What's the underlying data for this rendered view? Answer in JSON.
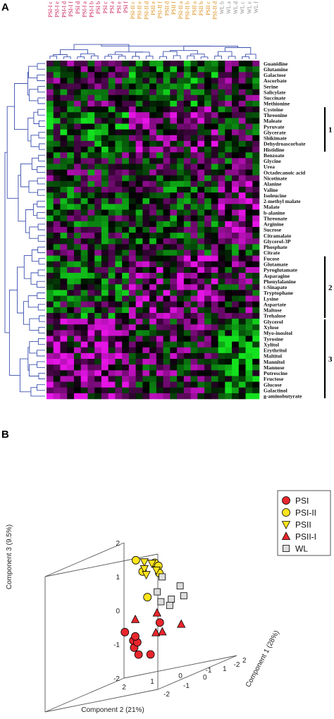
{
  "panels": {
    "a": "A",
    "b": "B"
  },
  "chart_data": [
    {
      "type": "heatmap",
      "title": "",
      "columns": [
        {
          "label": "PSI-I c",
          "group": "PSI-I"
        },
        {
          "label": "PSI-I e",
          "group": "PSI-I"
        },
        {
          "label": "PSI-I d",
          "group": "PSI-I"
        },
        {
          "label": "PSI-I f",
          "group": "PSI-I"
        },
        {
          "label": "PSI d",
          "group": "PSI-I"
        },
        {
          "label": "PSI-I a",
          "group": "PSI-I"
        },
        {
          "label": "PSI-I b",
          "group": "PSI-I"
        },
        {
          "label": "PSI b",
          "group": "PSI-I"
        },
        {
          "label": "PSI c",
          "group": "PSI-I"
        },
        {
          "label": "PSI a",
          "group": "PSI-I"
        },
        {
          "label": "PSI e",
          "group": "PSI-I"
        },
        {
          "label": "PSI f",
          "group": "PSI-I"
        },
        {
          "label": "PSI-II c",
          "group": "PSI-II"
        },
        {
          "label": "PSI-II e",
          "group": "PSI-II"
        },
        {
          "label": "PSI-II d",
          "group": "PSI-II"
        },
        {
          "label": "PSII e",
          "group": "PSI-II"
        },
        {
          "label": "PSI-II f",
          "group": "PSI-II"
        },
        {
          "label": "PSII d",
          "group": "PSI-II"
        },
        {
          "label": "PSII f",
          "group": "PSI-II"
        },
        {
          "label": "PSI-II a",
          "group": "PSI-II"
        },
        {
          "label": "PSI-II b",
          "group": "PSI-II"
        },
        {
          "label": "PSII a",
          "group": "PSI-II"
        },
        {
          "label": "PSII b",
          "group": "PSI-II"
        },
        {
          "label": "PSII c",
          "group": "PSI-II"
        },
        {
          "label": "PSI-II d",
          "group": "PSI-II"
        },
        {
          "label": "WL b",
          "group": "WL"
        },
        {
          "label": "WL a",
          "group": "WL"
        },
        {
          "label": "WL d",
          "group": "WL"
        },
        {
          "label": "WL c",
          "group": "WL"
        },
        {
          "label": "WL e",
          "group": "WL"
        },
        {
          "label": "WL f",
          "group": "WL"
        }
      ],
      "rows": [
        "Guanidine",
        "Glutamine",
        "Galactose",
        "Ascorbate",
        "Serine",
        "Salicylate",
        "Succinate",
        "Methionine",
        "Cysteine",
        "Threonine",
        "Maleate",
        "Pyruvate",
        "Glycerate",
        "Shikimate",
        "Dehydroascorbate",
        "Histidine",
        "Benzoate",
        "Glycine",
        "Urea",
        "Octadecanoic acid",
        "Nicotinate",
        "Alanine",
        "Valine",
        "Isoleucine",
        "2-methyl malate",
        "Malate",
        "b-alanine",
        "Threonate",
        "Arginine",
        "Sucrose",
        "Citramalate",
        "Glycerol-3P",
        "Phosphate",
        "Citrate",
        "Fucose",
        "Glutamate",
        "Pyroglutamate",
        "Asparagine",
        "Phenylalanine",
        "t-Sinapate",
        "Tryptophane",
        "Lysine",
        "Aspartate",
        "Maltose",
        "Trehalose",
        "Glycerol",
        "Xylose",
        "Myo-inositol",
        "Tyrosine",
        "Xylitol",
        "Erythritol",
        "Maltitol",
        "Mannitol",
        "Mannose",
        "Putrescine",
        "Fructose",
        "Glucose",
        "Galactinol",
        "g-aminobutyrate"
      ],
      "clusters": [
        {
          "label": "1",
          "from_row": "Cysteine",
          "to_row": "Histidine"
        },
        {
          "label": "2",
          "from_row": "Fucose",
          "to_row": "Trehalose"
        },
        {
          "label": "3",
          "from_row": "Glycerol",
          "to_row": "g-aminobutyrate"
        }
      ],
      "colors": {
        "high": "#ff00ff",
        "low": "#00ee00",
        "mid": "#000000"
      }
    },
    {
      "type": "scatter",
      "projection": "3d",
      "axes": {
        "x": {
          "label": "Component 2 (21%)",
          "ticks": [
            "2",
            "1",
            "0",
            "-1",
            "-2"
          ],
          "range": [
            2,
            -2
          ]
        },
        "y": {
          "label": "Component 1 (28%)",
          "ticks": [
            "2",
            "1",
            "0",
            "-1",
            "-2"
          ],
          "range": [
            2,
            -2
          ]
        },
        "z": {
          "label": "Component 3 (9.5%)",
          "ticks": [
            "2",
            "1",
            "0",
            "-1",
            "-2"
          ],
          "range": [
            -2,
            2
          ]
        }
      },
      "legend_position": "right",
      "series": [
        {
          "name": "PSI",
          "marker": "circle",
          "color": "#e8262c",
          "points": [
            [
              1.2,
              0.9,
              -0.5
            ],
            [
              0.9,
              0.9,
              -0.8
            ],
            [
              0.8,
              0.8,
              -1.0
            ],
            [
              0.9,
              1.1,
              -0.9
            ],
            [
              0.75,
              0.95,
              -1.25
            ],
            [
              0.5,
              1.2,
              -1.35
            ],
            [
              0.1,
              1.1,
              -0.45
            ],
            [
              0.9,
              1.0,
              -0.7
            ]
          ]
        },
        {
          "name": "PSI-II",
          "marker": "circle",
          "color": "#ffe41c",
          "points": [
            [
              0.6,
              0.6,
              1.6
            ],
            [
              0.5,
              0.8,
              1.2
            ],
            [
              0.0,
              0.7,
              1.4
            ],
            [
              -0.2,
              0.6,
              1.3
            ],
            [
              -0.3,
              0.5,
              1.1
            ],
            [
              0.4,
              0.9,
              0.4
            ]
          ]
        },
        {
          "name": "PSII",
          "marker": "triangle-down",
          "color": "#ffe41c",
          "points": [
            [
              0.3,
              0.6,
              1.5
            ],
            [
              0.3,
              0.6,
              1.3
            ],
            [
              0.3,
              0.7,
              1.1
            ],
            [
              -0.2,
              0.5,
              1.2
            ],
            [
              0.1,
              0.7,
              1.4
            ]
          ]
        },
        {
          "name": "PSII-I",
          "marker": "triangle-up",
          "color": "#e8262c",
          "points": [
            [
              0.9,
              1.0,
              -0.2
            ],
            [
              0.2,
              1.1,
              -0.15
            ],
            [
              0.1,
              0.9,
              -0.7
            ],
            [
              -0.2,
              0.8,
              -0.7
            ],
            [
              -0.8,
              0.9,
              -0.6
            ]
          ]
        },
        {
          "name": "WL",
          "marker": "square",
          "color": "#dddddd",
          "points": [
            [
              -1.1,
              -0.5,
              1.1
            ],
            [
              -1.0,
              -0.6,
              0.7
            ],
            [
              -1.2,
              -0.7,
              0.4
            ],
            [
              -1.6,
              -0.3,
              0.7
            ],
            [
              -1.5,
              -0.6,
              0.4
            ],
            [
              -1.3,
              -0.4,
              0.2
            ],
            [
              -1.8,
              -0.4,
              0.4
            ]
          ]
        }
      ]
    }
  ]
}
